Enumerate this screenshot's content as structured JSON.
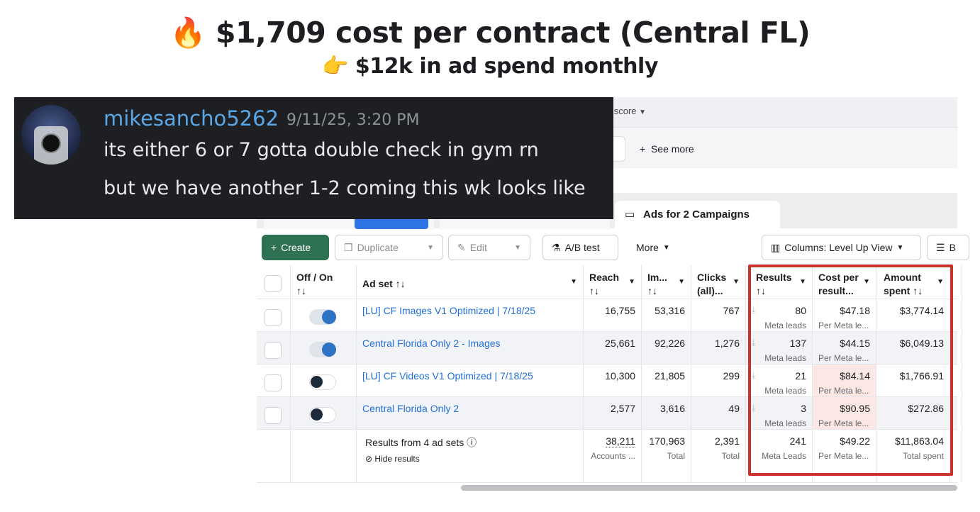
{
  "headline": {
    "title": "🔥 $1,709 cost per contract (Central FL)",
    "subtitle": "👉 $12k in ad spend monthly"
  },
  "discord": {
    "username": "mikesancho5262",
    "timestamp": "9/11/25, 3:20 PM",
    "lines": [
      "its either 6 or 7 gotta double check in gym rn",
      "but we have another 1-2 coming this wk looks like"
    ]
  },
  "ads_manager": {
    "topbar": {
      "quality_score": "ty score"
    },
    "filters": {
      "see_more": "See more"
    },
    "tabs": {
      "active": "Ads for 2 Campaigns"
    },
    "toolbar": {
      "create": "Create",
      "duplicate": "Duplicate",
      "edit": "Edit",
      "ab_test": "A/B test",
      "more": "More",
      "columns": "Columns: Level Up View",
      "breakdown": "B"
    },
    "headers": {
      "offon": "Off / On",
      "adset": "Ad set ↑↓",
      "reach": "Reach",
      "impressions": "Im...",
      "clicks": "Clicks (all)...",
      "results": "Results",
      "cost": "Cost per result...",
      "amount": "Amount spent ↑↓",
      "sort": "↑↓"
    },
    "rows": [
      {
        "name": "[LU] CF Images V1 Optimized | 7/18/25",
        "on": true,
        "reach": "16,755",
        "impressions": "53,316",
        "clicks": "767",
        "results": "80",
        "results_sub": "Meta leads",
        "cost": "$47.18",
        "cost_sub": "Per Meta le...",
        "amount": "$3,774.14",
        "highlight": false
      },
      {
        "name": "Central Florida Only 2 - Images",
        "on": true,
        "reach": "25,661",
        "impressions": "92,226",
        "clicks": "1,276",
        "results": "137",
        "results_sub": "Meta leads",
        "cost": "$44.15",
        "cost_sub": "Per Meta le...",
        "amount": "$6,049.13",
        "highlight": false
      },
      {
        "name": "[LU] CF Videos V1 Optimized | 7/18/25",
        "on": false,
        "reach": "10,300",
        "impressions": "21,805",
        "clicks": "299",
        "results": "21",
        "results_sub": "Meta leads",
        "cost": "$84.14",
        "cost_sub": "Per Meta le...",
        "amount": "$1,766.91",
        "highlight": true
      },
      {
        "name": "Central Florida Only 2",
        "on": false,
        "reach": "2,577",
        "impressions": "3,616",
        "clicks": "49",
        "results": "3",
        "results_sub": "Meta leads",
        "cost": "$90.95",
        "cost_sub": "Per Meta le...",
        "amount": "$272.86",
        "highlight": true
      }
    ],
    "totals": {
      "label": "Results from 4 ad sets",
      "hide": "Hide results",
      "reach": "38,211",
      "reach_sub": "Accounts ...",
      "impressions": "170,963",
      "impressions_sub": "Total",
      "clicks": "2,391",
      "clicks_sub": "Total",
      "results": "241",
      "results_sub": "Meta Leads",
      "cost": "$49.22",
      "cost_sub": "Per Meta le...",
      "amount": "$11,863.04",
      "amount_sub": "Total spent"
    },
    "colors": {
      "highlight_box": "#c8332b",
      "create_button": "#2e7153",
      "link": "#216fdb"
    }
  }
}
